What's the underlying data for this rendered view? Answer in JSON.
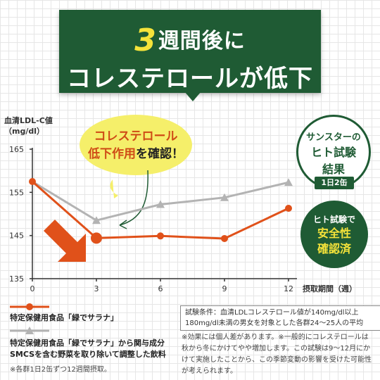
{
  "title": {
    "number": "3",
    "line1_rest": "週間後に",
    "line2": "コレステロールが低下"
  },
  "y_axis_label": [
    "血清LDL-C値",
    "（mg/dl）"
  ],
  "bubble": {
    "line1": "コレステロール",
    "line2_red": "低下作用",
    "line2_black": "を確認！"
  },
  "badge": {
    "top": "サンスターの",
    "mid1": "ヒト試験",
    "mid2": "結果",
    "tag": "1日2缶"
  },
  "badge_green": {
    "top": "ヒト試験で",
    "line1": "安全性",
    "line2": "確認済"
  },
  "colors": {
    "orange": "#e0511a",
    "gray": "#b3b3b3",
    "green": "#1f5b34",
    "yellow": "#f5ef6a",
    "arrow": "#e0511a"
  },
  "chart_data": {
    "type": "line",
    "x": [
      0,
      3,
      6,
      9,
      12
    ],
    "xlabel": "摂取期間（週）",
    "ylabel": "血清LDL-C値（mg/dl）",
    "ylim": [
      135,
      165
    ],
    "yticks": [
      135,
      145,
      155,
      165
    ],
    "xticks": [
      "0",
      "3",
      "6",
      "9",
      "12"
    ],
    "grid": false,
    "series": [
      {
        "name": "特定保健用食品「緑でサラナ」",
        "color": "#e0511a",
        "values": [
          157.5,
          144.4,
          144.9,
          144.3,
          151.3
        ]
      },
      {
        "name": "特定保健用食品「緑でサラナ」から関与成分SMCSを含む野菜を取り除いて調整した飲料",
        "color": "#b3b3b3",
        "values": [
          157.5,
          148.5,
          152.2,
          153.8,
          157.3
        ]
      }
    ]
  },
  "legend": {
    "item1": "特定保健用食品「緑でサラナ」",
    "item2_line1": "特定保健用食品「緑でサラナ」から関与成分",
    "item2_line2": "SMCSを含む野菜を取り除いて調整した飲料",
    "note": "※各群1日2缶ずつ12週間摂取。"
  },
  "conditions": {
    "line1": "試験条件：血清LDLコレステロール値が140mg/dl以上",
    "line2": "180mg/dl未満の男女を対象とした各群24〜25人の平均"
  },
  "note_right": {
    "line1": "※効果には個人差があります。※一般的にコレステロールは",
    "line2": "秋から冬にかけてやや増加します。この試験は9〜12月にか",
    "line3": "けて実施したことから、この季節変動の影響を受けた可能性",
    "line4": "が考えられます。"
  }
}
